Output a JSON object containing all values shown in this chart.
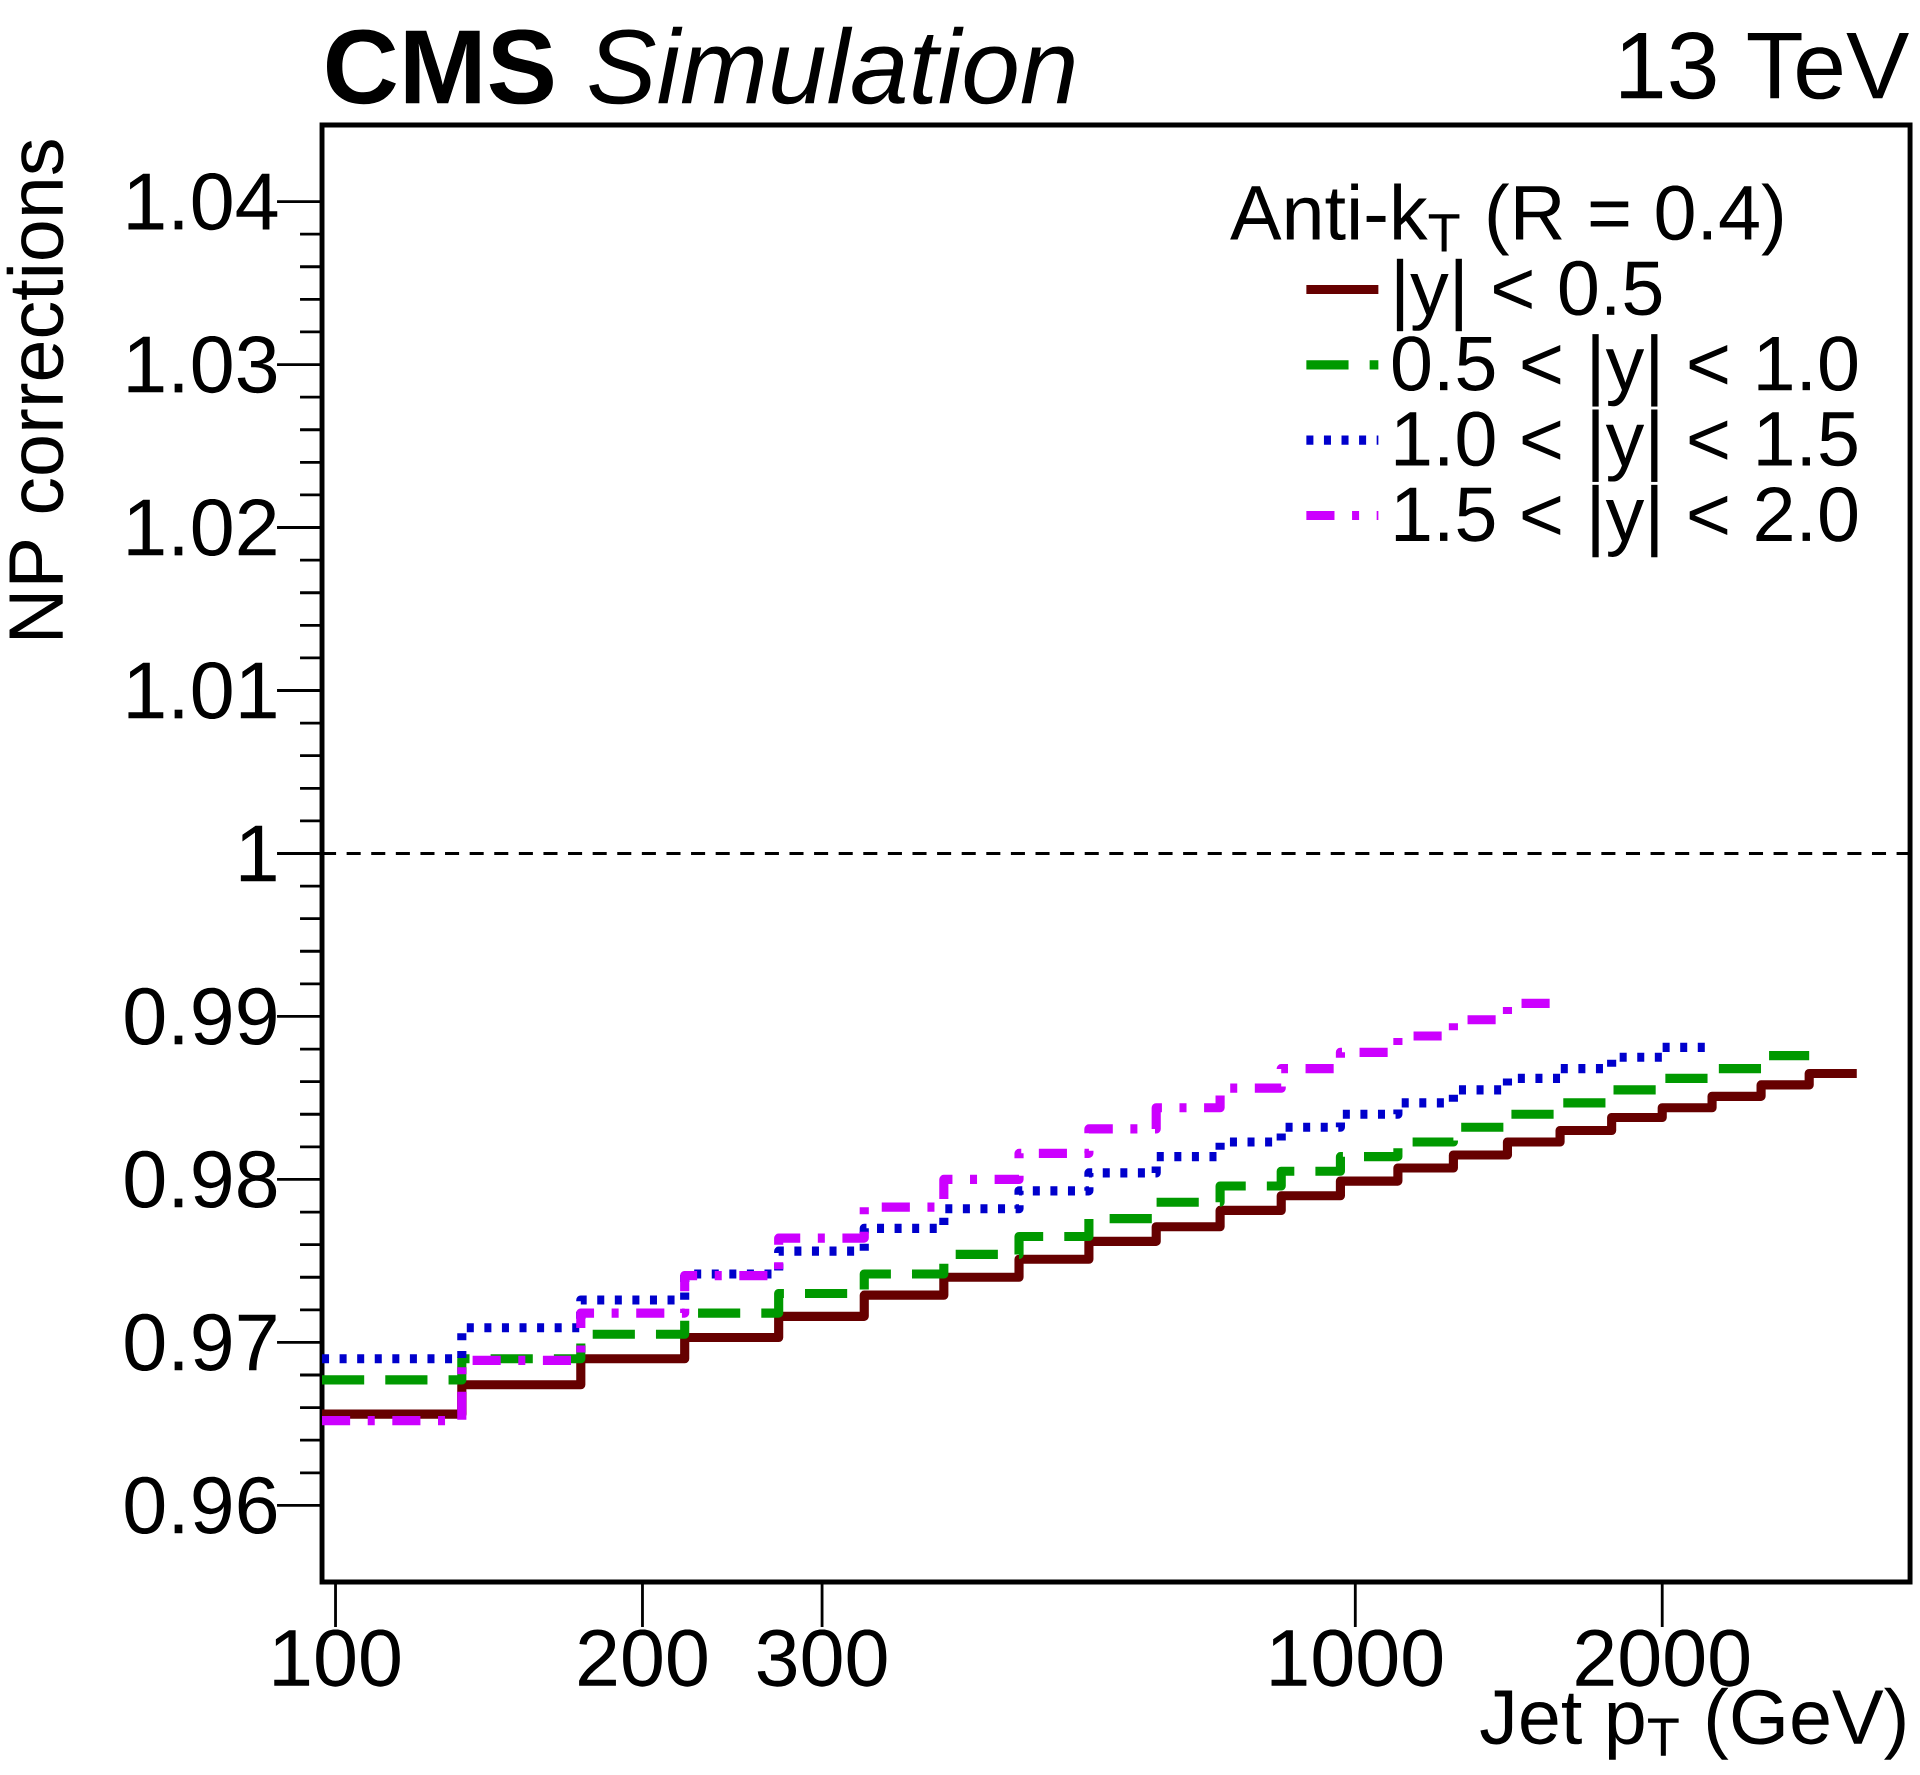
{
  "chart_data": {
    "type": "step",
    "title": "**CMS** *Simulation*",
    "subtitle": "13 TeV",
    "xlabel": "Jet p$_{T}$ (GeV)",
    "ylabel": "NP corrections",
    "legend_title": "Anti-k$_{T}$ (R = 0.4)",
    "log": "x",
    "legend": "top right",
    "xlim": [
      97,
      3500
    ],
    "ylim": [
      0.9553,
      1.0447
    ],
    "xticks": [
      100,
      200,
      300,
      1000,
      2000
    ],
    "yticks": [
      0.96,
      0.97,
      0.98,
      0.99,
      1,
      1.01,
      1.02,
      1.03,
      1.04
    ],
    "ref_lines": [
      {
        "axis": "y",
        "value": 1,
        "color": "#000000",
        "line_style": "dashed"
      }
    ],
    "series": [
      {
        "name": "|y| < 0.5",
        "color": "#660000",
        "line_style": "solid",
        "x": [
          97,
          133,
          174,
          220,
          272,
          330,
          395,
          468,
          548,
          638,
          737,
          846,
          967,
          1101,
          1248,
          1410,
          1588,
          1784,
          2000,
          2238,
          2500,
          2787,
          3103
        ],
        "values": [
          0.9656,
          0.9674,
          0.969,
          0.9703,
          0.9716,
          0.9729,
          0.974,
          0.9751,
          0.9762,
          0.9771,
          0.9781,
          0.979,
          0.9799,
          0.9807,
          0.9815,
          0.9823,
          0.983,
          0.9838,
          0.9844,
          0.9851,
          0.9858,
          0.9865,
          0.9865
        ]
      },
      {
        "name": "0.5 < |y| < 1.0",
        "color": "#009900",
        "line_style": "dashed",
        "x": [
          97,
          133,
          174,
          220,
          272,
          330,
          395,
          468,
          548,
          638,
          737,
          846,
          967,
          1101,
          1248,
          1410,
          1588,
          1784,
          2000,
          2238,
          2500,
          2787
        ],
        "values": [
          0.9677,
          0.969,
          0.9705,
          0.9718,
          0.973,
          0.9742,
          0.9754,
          0.9765,
          0.9776,
          0.9786,
          0.9796,
          0.9805,
          0.9814,
          0.9823,
          0.9832,
          0.984,
          0.9847,
          0.9855,
          0.9862,
          0.9868,
          0.9876,
          0.9876
        ]
      },
      {
        "name": "1.0 < |y| < 1.5",
        "color": "#0000cc",
        "line_style": "dotted",
        "x": [
          97,
          133,
          174,
          220,
          272,
          330,
          395,
          468,
          548,
          638,
          737,
          846,
          967,
          1101,
          1248,
          1410,
          1588,
          1784,
          2000,
          2238
        ],
        "values": [
          0.969,
          0.9709,
          0.9726,
          0.9742,
          0.9756,
          0.977,
          0.9782,
          0.9793,
          0.9804,
          0.9814,
          0.9823,
          0.9832,
          0.984,
          0.9847,
          0.9855,
          0.9862,
          0.9868,
          0.9875,
          0.9881,
          0.9881
        ]
      },
      {
        "name": "1.5 < |y| < 2.0",
        "color": "#cc00ff",
        "line_style": "dashdot",
        "x": [
          97,
          133,
          174,
          220,
          272,
          330,
          395,
          468,
          548,
          638,
          737,
          846,
          967,
          1101,
          1248,
          1410,
          1588
        ],
        "values": [
          0.9652,
          0.9689,
          0.9718,
          0.9741,
          0.9764,
          0.9783,
          0.98,
          0.9816,
          0.9831,
          0.9844,
          0.9856,
          0.9868,
          0.9878,
          0.9888,
          0.9898,
          0.9908,
          0.9908
        ]
      }
    ]
  }
}
